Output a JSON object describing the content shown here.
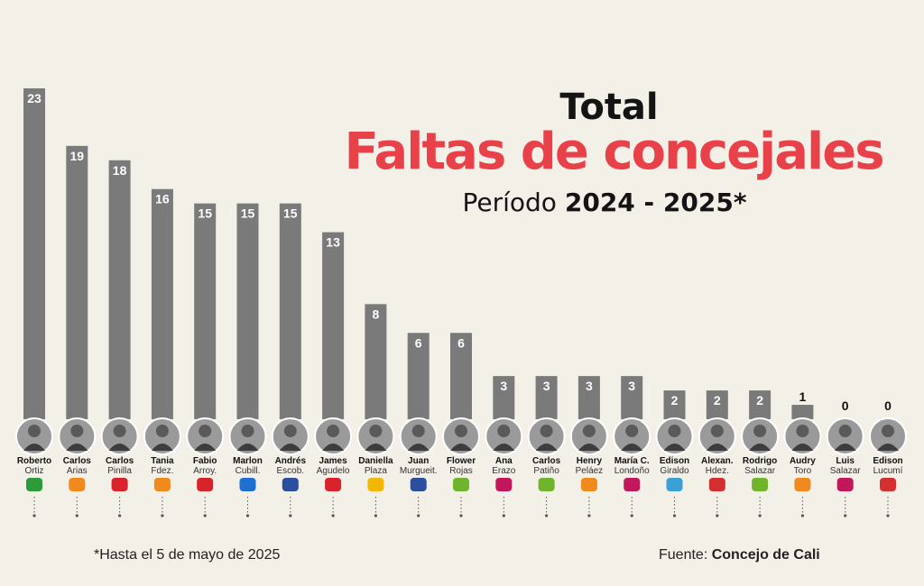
{
  "header": {
    "title_line1": "Total",
    "title_line2": "Faltas de concejales",
    "subtitle_prefix": "Período",
    "subtitle_period": "2024 - 2025*"
  },
  "footer": {
    "note": "*Hasta el 5 de mayo de 2025",
    "source_prefix": "Fuente:",
    "source_name": "Concejo de Cali"
  },
  "colors": {
    "background": "#f3f0e8",
    "bar": "#7a7a7a",
    "title_accent": "#e8414a"
  },
  "chart_data": {
    "type": "bar",
    "title": "Faltas de concejales",
    "ylim": [
      0,
      23
    ],
    "grid": false,
    "categories": [
      {
        "first": "Roberto",
        "last": "Ortiz",
        "party_icon": "green-party-logo",
        "value": 23
      },
      {
        "first": "Carlos",
        "last": "Arias",
        "party_icon": "partido-u-logo",
        "value": 19
      },
      {
        "first": "Carlos",
        "last": "Pinilla",
        "party_icon": "liberal-party-logo",
        "value": 18
      },
      {
        "first": "Tania",
        "last": "Fdez.",
        "party_icon": "partido-u-logo",
        "value": 16
      },
      {
        "first": "Fabio",
        "last": "Arroy.",
        "party_icon": "liberal-party-logo",
        "value": 15
      },
      {
        "first": "Marlon",
        "last": "Cubill.",
        "party_icon": "conservative-party-logo",
        "value": 15
      },
      {
        "first": "Andrés",
        "last": "Escob.",
        "party_icon": "centro-democratico-logo",
        "value": 15
      },
      {
        "first": "James",
        "last": "Agudelo",
        "party_icon": "liberal-party-logo",
        "value": 13
      },
      {
        "first": "Daniella",
        "last": "Plaza",
        "party_icon": "renacimiento-logo",
        "value": 8
      },
      {
        "first": "Juan",
        "last": "Murgueit.",
        "party_icon": "centro-democratico-logo",
        "value": 6
      },
      {
        "first": "Flower",
        "last": "Rojas",
        "party_icon": "verde-logo",
        "value": 6
      },
      {
        "first": "Ana",
        "last": "Erazo",
        "party_icon": "pacto-historico-logo",
        "value": 3
      },
      {
        "first": "Carlos",
        "last": "Patiño",
        "party_icon": "verde-logo",
        "value": 3
      },
      {
        "first": "Henry",
        "last": "Peláez",
        "party_icon": "partido-u-logo",
        "value": 3
      },
      {
        "first": "María C.",
        "last": "Londoño",
        "party_icon": "pacto-historico-logo",
        "value": 3
      },
      {
        "first": "Edison",
        "last": "Giraldo",
        "party_icon": "small-party-logo",
        "value": 2
      },
      {
        "first": "Alexan.",
        "last": "Hdez.",
        "party_icon": "cambio-radical-logo",
        "value": 2
      },
      {
        "first": "Rodrigo",
        "last": "Salazar",
        "party_icon": "verde-logo",
        "value": 2
      },
      {
        "first": "Audry",
        "last": "Toro",
        "party_icon": "partido-u-logo",
        "value": 1
      },
      {
        "first": "Luis",
        "last": "Salazar",
        "party_icon": "pacto-historico-logo",
        "value": 0
      },
      {
        "first": "Edison",
        "last": "Lucumí",
        "party_icon": "cambio-radical-logo",
        "value": 0
      }
    ]
  }
}
